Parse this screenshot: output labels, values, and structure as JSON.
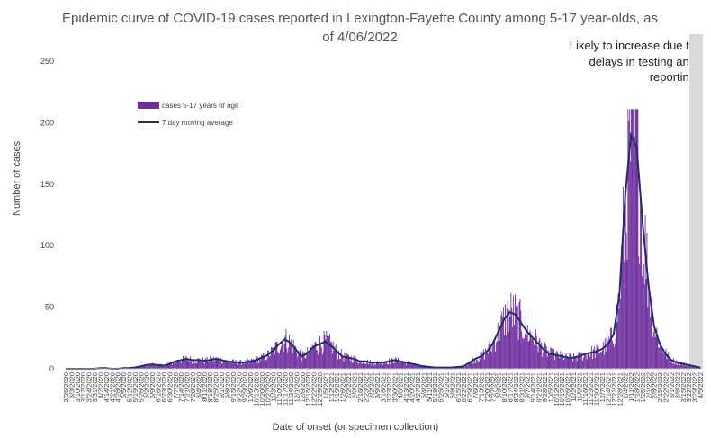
{
  "chart_data": {
    "type": "bar",
    "title": "Epidemic curve of COVID-19 cases reported in Lexington-Fayette County among 5-17 year-olds, as of 4/06/2022",
    "title_line1": "Epidemic curve of COVID-19 cases reported in Lexington-Fayette County among 5-17 year-olds, as",
    "title_line2": "of 4/06/2022",
    "ylabel": "Number of cases",
    "xlabel": "Date of onset (or specimen collection)",
    "ylim": [
      0,
      250
    ],
    "yticks": [
      0,
      50,
      100,
      150,
      200,
      250
    ],
    "x_start": "2020-02-25",
    "x_end": "2022-04-05",
    "grid": false,
    "legend_position": "upper-left",
    "annotation": [
      "Likely to increase due to",
      "delays in testing and",
      "reporting"
    ],
    "shaded_region": {
      "start": "2022-03-23",
      "end": "2022-04-05",
      "color": "#d9d9d9"
    },
    "series": [
      {
        "name": "cases 5-17 years of age",
        "kind": "bar",
        "color": "#7030a0"
      },
      {
        "name": "7 day moving average",
        "kind": "line",
        "color": "#1f2d6b"
      }
    ],
    "weekly_average_daily_cases": [
      [
        "2020-02-25",
        0
      ],
      [
        "2020-03-03",
        0
      ],
      [
        "2020-03-10",
        0
      ],
      [
        "2020-03-17",
        0
      ],
      [
        "2020-03-24",
        0
      ],
      [
        "2020-03-31",
        0
      ],
      [
        "2020-04-07",
        0.5
      ],
      [
        "2020-04-14",
        0.5
      ],
      [
        "2020-04-21",
        0
      ],
      [
        "2020-04-28",
        0
      ],
      [
        "2020-05-05",
        0.5
      ],
      [
        "2020-05-12",
        0.5
      ],
      [
        "2020-05-19",
        1
      ],
      [
        "2020-05-26",
        2
      ],
      [
        "2020-06-02",
        3
      ],
      [
        "2020-06-09",
        3.5
      ],
      [
        "2020-06-16",
        3
      ],
      [
        "2020-06-23",
        2.5
      ],
      [
        "2020-06-30",
        4
      ],
      [
        "2020-07-07",
        6
      ],
      [
        "2020-07-14",
        7
      ],
      [
        "2020-07-21",
        8
      ],
      [
        "2020-07-28",
        7
      ],
      [
        "2020-08-04",
        7
      ],
      [
        "2020-08-11",
        6.5
      ],
      [
        "2020-08-18",
        7
      ],
      [
        "2020-08-25",
        8
      ],
      [
        "2020-09-01",
        7
      ],
      [
        "2020-09-08",
        6
      ],
      [
        "2020-09-15",
        5.5
      ],
      [
        "2020-09-22",
        5
      ],
      [
        "2020-09-29",
        5
      ],
      [
        "2020-10-06",
        6
      ],
      [
        "2020-10-13",
        7
      ],
      [
        "2020-10-20",
        9
      ],
      [
        "2020-10-27",
        11
      ],
      [
        "2020-11-03",
        15
      ],
      [
        "2020-11-10",
        20
      ],
      [
        "2020-11-17",
        24
      ],
      [
        "2020-11-24",
        21
      ],
      [
        "2020-12-01",
        15
      ],
      [
        "2020-12-08",
        10
      ],
      [
        "2020-12-15",
        13
      ],
      [
        "2020-12-22",
        18
      ],
      [
        "2020-12-29",
        20
      ],
      [
        "2021-01-05",
        22
      ],
      [
        "2021-01-12",
        19
      ],
      [
        "2021-01-19",
        14
      ],
      [
        "2021-01-26",
        10
      ],
      [
        "2021-02-02",
        9
      ],
      [
        "2021-02-09",
        8
      ],
      [
        "2021-02-16",
        6
      ],
      [
        "2021-02-23",
        6
      ],
      [
        "2021-03-02",
        5
      ],
      [
        "2021-03-09",
        5
      ],
      [
        "2021-03-16",
        5
      ],
      [
        "2021-03-23",
        6
      ],
      [
        "2021-03-30",
        7
      ],
      [
        "2021-04-06",
        6
      ],
      [
        "2021-04-13",
        5
      ],
      [
        "2021-04-20",
        4
      ],
      [
        "2021-04-27",
        3
      ],
      [
        "2021-05-04",
        2
      ],
      [
        "2021-05-11",
        1.5
      ],
      [
        "2021-05-18",
        1
      ],
      [
        "2021-05-25",
        1
      ],
      [
        "2021-06-01",
        1
      ],
      [
        "2021-06-08",
        1
      ],
      [
        "2021-06-15",
        1.5
      ],
      [
        "2021-06-22",
        2
      ],
      [
        "2021-06-29",
        5
      ],
      [
        "2021-07-06",
        8
      ],
      [
        "2021-07-13",
        10
      ],
      [
        "2021-07-20",
        14
      ],
      [
        "2021-07-27",
        20
      ],
      [
        "2021-08-03",
        30
      ],
      [
        "2021-08-10",
        40
      ],
      [
        "2021-08-17",
        46
      ],
      [
        "2021-08-24",
        44
      ],
      [
        "2021-08-31",
        37
      ],
      [
        "2021-09-07",
        30
      ],
      [
        "2021-09-14",
        25
      ],
      [
        "2021-09-21",
        20
      ],
      [
        "2021-09-28",
        15
      ],
      [
        "2021-10-05",
        12
      ],
      [
        "2021-10-12",
        11
      ],
      [
        "2021-10-19",
        10
      ],
      [
        "2021-10-26",
        9
      ],
      [
        "2021-11-02",
        9
      ],
      [
        "2021-11-09",
        10
      ],
      [
        "2021-11-16",
        12
      ],
      [
        "2021-11-23",
        13
      ],
      [
        "2021-11-30",
        14
      ],
      [
        "2021-12-07",
        16
      ],
      [
        "2021-12-14",
        20
      ],
      [
        "2021-12-21",
        28
      ],
      [
        "2021-12-28",
        60
      ],
      [
        "2022-01-04",
        140
      ],
      [
        "2022-01-11",
        190
      ],
      [
        "2022-01-18",
        180
      ],
      [
        "2022-01-25",
        120
      ],
      [
        "2022-02-01",
        70
      ],
      [
        "2022-02-08",
        35
      ],
      [
        "2022-02-15",
        20
      ],
      [
        "2022-02-22",
        12
      ],
      [
        "2022-03-01",
        7
      ],
      [
        "2022-03-08",
        5
      ],
      [
        "2022-03-15",
        4
      ],
      [
        "2022-03-22",
        3
      ],
      [
        "2022-03-29",
        2
      ],
      [
        "2022-04-05",
        1
      ]
    ],
    "x_tick_labels": [
      "2/25/2020",
      "3/3/2020",
      "3/10/2020",
      "3/17/2020",
      "3/24/2020",
      "3/31/2020",
      "4/7/2020",
      "4/14/2020",
      "4/21/2020",
      "4/28/2020",
      "5/5/2020",
      "5/12/2020",
      "5/19/2020",
      "5/26/2020",
      "6/2/2020",
      "6/9/2020",
      "6/16/2020",
      "6/23/2020",
      "6/30/2020",
      "7/7/2020",
      "7/14/2020",
      "7/21/2020",
      "7/28/2020",
      "8/4/2020",
      "8/11/2020",
      "8/18/2020",
      "8/25/2020",
      "9/1/2020",
      "9/8/2020",
      "9/15/2020",
      "9/22/2020",
      "9/29/2020",
      "10/6/2020",
      "10/13/2020",
      "10/20/2020",
      "10/27/2020",
      "11/3/2020",
      "11/10/2020",
      "11/17/2020",
      "11/24/2020",
      "12/1/2020",
      "12/8/2020",
      "12/15/2020",
      "12/22/2020",
      "12/29/2020",
      "1/5/2021",
      "1/12/2021",
      "1/19/2021",
      "1/26/2021",
      "2/2/2021",
      "2/9/2021",
      "2/16/2021",
      "2/23/2021",
      "3/2/2021",
      "3/9/2021",
      "3/16/2021",
      "3/23/2021",
      "3/30/2021",
      "4/6/2021",
      "4/13/2021",
      "4/20/2021",
      "4/27/2021",
      "5/4/2021",
      "5/11/2021",
      "5/18/2021",
      "5/25/2021",
      "6/1/2021",
      "6/8/2021",
      "6/15/2021",
      "6/22/2021",
      "6/29/2021",
      "7/6/2021",
      "7/13/2021",
      "7/20/2021",
      "7/27/2021",
      "8/3/2021",
      "8/10/2021",
      "8/17/2021",
      "8/24/2021",
      "8/31/2021",
      "9/7/2021",
      "9/14/2021",
      "9/21/2021",
      "9/28/2021",
      "10/5/2021",
      "10/12/2021",
      "10/19/2021",
      "10/26/2021",
      "11/2/2021",
      "11/9/2021",
      "11/16/2021",
      "11/23/2021",
      "11/30/2021",
      "12/7/2021",
      "12/14/2021",
      "12/21/2021",
      "12/28/2021",
      "1/4/2022",
      "1/11/2022",
      "1/18/2022",
      "1/25/2022",
      "2/1/2022",
      "2/8/2022",
      "2/15/2022",
      "2/22/2022",
      "3/1/2022",
      "3/8/2022",
      "3/15/2022",
      "3/22/2022",
      "3/29/2022",
      "4/5/2022"
    ]
  }
}
